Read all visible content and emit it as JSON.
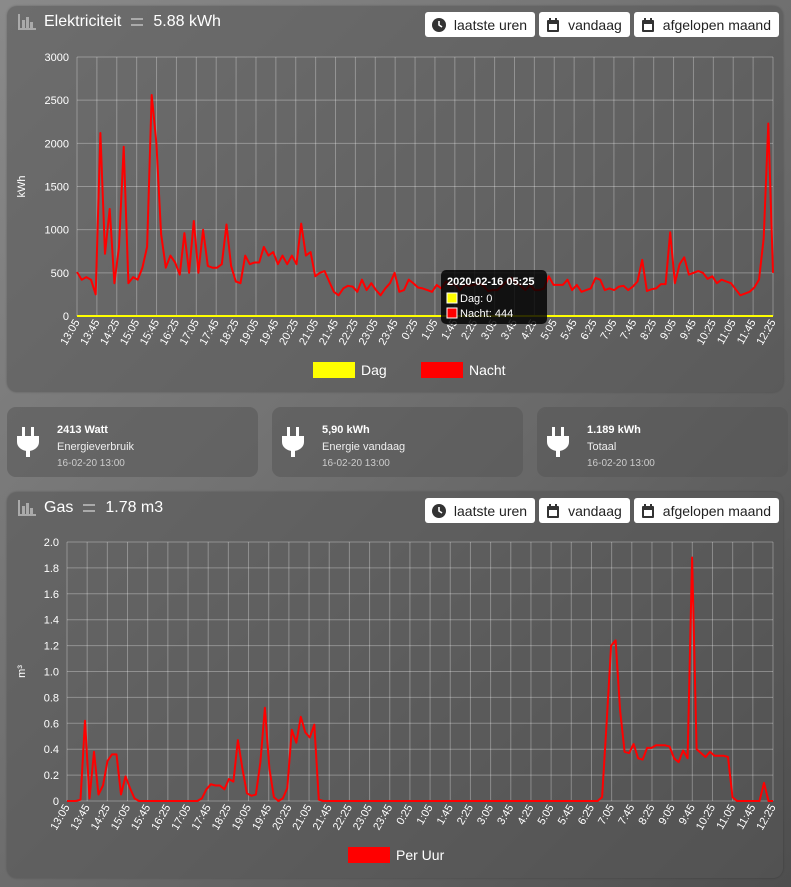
{
  "elec": {
    "title": "Elektriciteit",
    "value": "5.88 kWh",
    "buttons": [
      "laatste uren",
      "vandaag",
      "afgelopen maand"
    ],
    "tooltip": {
      "title": "2020-02-16 05:25",
      "dag": "Dag: 0",
      "nacht": "Nacht: 444"
    },
    "colors": {
      "dag": "#ffff00",
      "nacht": "#ff0000"
    }
  },
  "gas": {
    "title": "Gas",
    "value": "1.78 m3",
    "buttons": [
      "laatste uren",
      "vandaag",
      "afgelopen maand"
    ],
    "colors": {
      "per_uur": "#ff0000"
    }
  },
  "cards": [
    {
      "value": "2413 Watt",
      "label": "Energieverbruik",
      "time": "16-02-20 13:00"
    },
    {
      "value": "5,90 kWh",
      "label": "Energie vandaag",
      "time": "16-02-20 13:00"
    },
    {
      "value": "1.189 kWh",
      "label": "Totaal",
      "time": "16-02-20 13:00"
    }
  ],
  "chart_data": [
    {
      "type": "line",
      "ylabel": "kWh",
      "ylim": [
        0,
        3000
      ],
      "yticks": [
        0,
        500,
        1000,
        1500,
        2000,
        2500,
        3000
      ],
      "xtick_labels": [
        "13:05",
        "13:45",
        "14:25",
        "15:05",
        "15:45",
        "16:25",
        "17:05",
        "17:45",
        "18:25",
        "19:05",
        "19:45",
        "20:25",
        "21:05",
        "21:45",
        "22:25",
        "23:05",
        "23:45",
        "0:25",
        "1:05",
        "1:45",
        "2:25",
        "3:05",
        "3:45",
        "4:25",
        "5:05",
        "5:45",
        "6:25",
        "7:05",
        "7:45",
        "8:25",
        "9:05",
        "9:45",
        "10:25",
        "11:05",
        "11:45",
        "12:25"
      ],
      "legend": [
        "Dag",
        "Nacht"
      ],
      "legend_position": "bottom",
      "grid": true,
      "series": [
        {
          "name": "Dag",
          "values": [
            0,
            0
          ]
        },
        {
          "name": "Nacht",
          "values": [
            510,
            420,
            450,
            420,
            250,
            2120,
            720,
            1240,
            380,
            800,
            1960,
            380,
            450,
            420,
            560,
            800,
            2560,
            2000,
            950,
            560,
            700,
            620,
            480,
            960,
            500,
            1100,
            500,
            1000,
            580,
            560,
            560,
            600,
            1060,
            580,
            400,
            380,
            700,
            600,
            620,
            620,
            800,
            700,
            740,
            600,
            700,
            600,
            700,
            600,
            1070,
            700,
            740,
            460,
            500,
            520,
            400,
            280,
            240,
            320,
            350,
            340,
            280,
            420,
            300,
            380,
            300,
            240,
            320,
            380,
            500,
            280,
            300,
            420,
            380,
            330,
            320,
            300,
            280,
            360,
            320,
            400,
            360,
            370,
            300,
            360,
            350,
            360,
            380,
            350,
            290,
            300,
            300,
            350,
            400,
            444,
            380,
            350,
            300,
            360,
            300,
            300,
            320,
            460,
            360,
            360,
            360,
            420,
            300,
            360,
            280,
            300,
            320,
            440,
            420,
            300,
            320,
            300,
            340,
            350,
            300,
            340,
            400,
            650,
            290,
            310,
            320,
            370,
            370,
            970,
            380,
            600,
            680,
            480,
            500,
            520,
            500,
            430,
            460,
            380,
            420,
            400,
            380,
            310,
            240,
            260,
            280,
            330,
            420,
            900,
            2230,
            500
          ]
        }
      ]
    },
    {
      "type": "line",
      "ylabel": "m³",
      "ylim": [
        0,
        2.0
      ],
      "yticks": [
        0,
        0.2,
        0.4,
        0.6,
        0.8,
        1.0,
        1.2,
        1.4,
        1.6,
        1.8,
        2.0
      ],
      "xtick_labels": [
        "13:05",
        "13:45",
        "14:25",
        "15:05",
        "15:45",
        "16:25",
        "17:05",
        "17:45",
        "18:25",
        "19:05",
        "19:45",
        "20:25",
        "21:05",
        "21:45",
        "22:25",
        "23:05",
        "23:45",
        "0:25",
        "1:05",
        "1:45",
        "2:25",
        "3:05",
        "3:45",
        "4:25",
        "5:05",
        "5:45",
        "6:25",
        "7:05",
        "7:45",
        "8:25",
        "9:05",
        "9:45",
        "10:25",
        "11:05",
        "11:45",
        "12:25"
      ],
      "legend": [
        "Per Uur"
      ],
      "legend_position": "bottom",
      "grid": true,
      "series": [
        {
          "name": "Per Uur",
          "values": [
            0,
            0,
            0,
            0.01,
            0.62,
            0.02,
            0.38,
            0.05,
            0.12,
            0.31,
            0.36,
            0.36,
            0.05,
            0.19,
            0.1,
            0.02,
            0,
            0,
            0,
            0,
            0,
            0,
            0,
            0,
            0,
            0,
            0,
            0,
            0,
            0,
            0.02,
            0.09,
            0.13,
            0.12,
            0.12,
            0.09,
            0.17,
            0.15,
            0.47,
            0.25,
            0.06,
            0.04,
            0.05,
            0.3,
            0.72,
            0.25,
            0.03,
            0,
            0.02,
            0.1,
            0.55,
            0.45,
            0.65,
            0.53,
            0.49,
            0.59,
            0.01,
            0,
            0,
            0,
            0,
            0,
            0,
            0,
            0,
            0,
            0,
            0,
            0,
            0,
            0,
            0,
            0,
            0,
            0,
            0,
            0,
            0,
            0,
            0,
            0,
            0,
            0,
            0,
            0,
            0,
            0,
            0,
            0,
            0,
            0,
            0,
            0,
            0,
            0,
            0,
            0,
            0,
            0,
            0,
            0,
            0,
            0,
            0,
            0,
            0,
            0,
            0,
            0,
            0,
            0,
            0,
            0,
            0,
            0,
            0,
            0,
            0,
            0,
            0.03,
            0.6,
            1.2,
            1.24,
            0.7,
            0.38,
            0.37,
            0.44,
            0.33,
            0.32,
            0.41,
            0.41,
            0.43,
            0.43,
            0.43,
            0.42,
            0.33,
            0.3,
            0.39,
            0.33,
            1.88,
            0.4,
            0.37,
            0.34,
            0.38,
            0.35,
            0.35,
            0.35,
            0.34,
            0.03,
            0,
            0,
            0,
            0,
            0,
            0,
            0.14,
            0,
            0
          ]
        }
      ]
    }
  ]
}
